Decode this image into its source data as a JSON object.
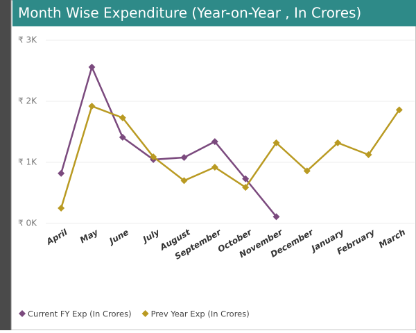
{
  "chart_data": {
    "type": "line",
    "title": "Month Wise Expenditure (Year-on-Year , In Crores)",
    "categories": [
      "April",
      "May",
      "June",
      "July",
      "August",
      "September",
      "October",
      "November",
      "December",
      "January",
      "February",
      "March"
    ],
    "series": [
      {
        "name": "Current FY Exp (In Crores)",
        "color": "#7b4a7e",
        "values": [
          820,
          2560,
          1410,
          1045,
          1080,
          1340,
          730,
          110,
          null,
          null,
          null,
          null
        ]
      },
      {
        "name": "Prev Year Exp (In Crores)",
        "color": "#b99a22",
        "values": [
          250,
          1920,
          1730,
          1090,
          700,
          920,
          590,
          1320,
          860,
          1320,
          1125,
          1860
        ]
      }
    ],
    "ylim": [
      0,
      3000
    ],
    "yticks": [
      {
        "value": 0,
        "label": "₹ 0K"
      },
      {
        "value": 1000,
        "label": "₹ 1K"
      },
      {
        "value": 2000,
        "label": "₹ 2K"
      },
      {
        "value": 3000,
        "label": "₹ 3K"
      }
    ],
    "grid": true,
    "legend": "bottom"
  }
}
